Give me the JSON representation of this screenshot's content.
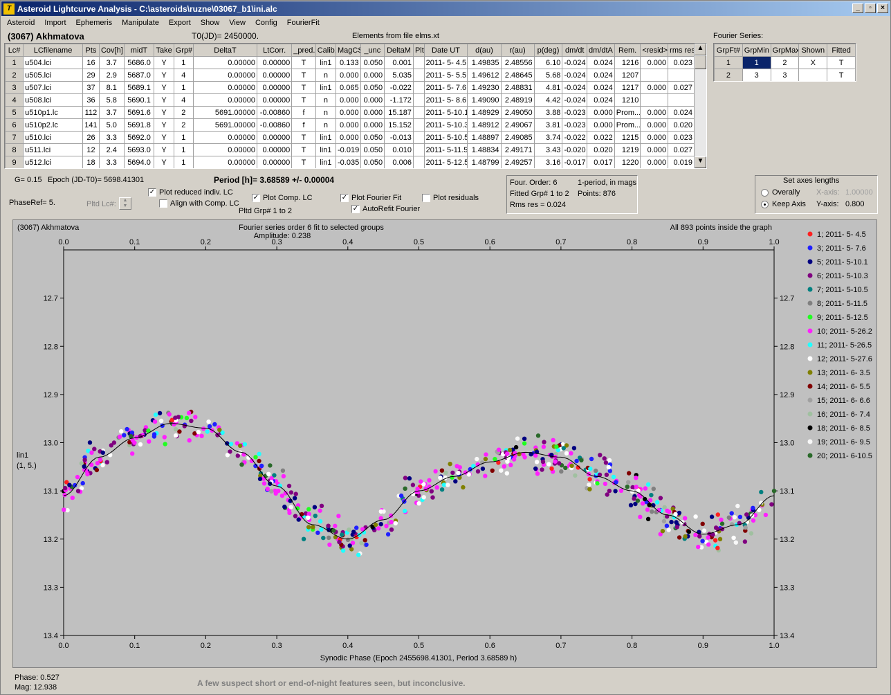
{
  "title": "Asteroid Lightcurve Analysis - C:\\asteroids\\ruzne\\03067_b1\\ini.alc",
  "menu": [
    "Asteroid",
    "Import",
    "Ephemeris",
    "Manipulate",
    "Export",
    "Show",
    "View",
    "Config",
    "FourierFit"
  ],
  "asteroid_name": "(3067) Akhmatova",
  "t0": "T0(JD)= 2450000.",
  "elements": "Elements from file elms.xt",
  "fourier_series_label": "Fourier Series:",
  "lc_table": {
    "columns": [
      "Lc#",
      "LCfilename",
      "Pts",
      "Cov[h]",
      "midT",
      "Take",
      "Grp#",
      "DeltaT",
      "LtCorr.",
      "_pred.",
      "Calib.",
      "MagCS",
      "_unc",
      "DeltaM",
      "Plt",
      "Date UT",
      "d(au)",
      "r(au)",
      "p(deg)",
      "dm/dt",
      "dm/dtA",
      "Rem.",
      "<resid>",
      "rms res"
    ],
    "rows": [
      [
        "1",
        "u504.lci",
        "16",
        "3.7",
        "5686.0",
        "Y",
        "1",
        "0.00000",
        "0.00000",
        "T",
        "lin1",
        "0.133",
        "0.050",
        "0.001",
        "",
        "2011- 5- 4.5",
        "1.49835",
        "2.48556",
        "6.10",
        "-0.024",
        "0.024",
        "1216",
        "0.000",
        "0.023"
      ],
      [
        "2",
        "u505.lci",
        "29",
        "2.9",
        "5687.0",
        "Y",
        "4",
        "0.00000",
        "0.00000",
        "T",
        "n",
        "0.000",
        "0.000",
        "5.035",
        "",
        "2011- 5- 5.5",
        "1.49612",
        "2.48645",
        "5.68",
        "-0.024",
        "0.024",
        "1207",
        "",
        ""
      ],
      [
        "3",
        "u507.lci",
        "37",
        "8.1",
        "5689.1",
        "Y",
        "1",
        "0.00000",
        "0.00000",
        "T",
        "lin1",
        "0.065",
        "0.050",
        "-0.022",
        "",
        "2011- 5- 7.6",
        "1.49230",
        "2.48831",
        "4.81",
        "-0.024",
        "0.024",
        "1217",
        "0.000",
        "0.027"
      ],
      [
        "4",
        "u508.lci",
        "36",
        "5.8",
        "5690.1",
        "Y",
        "4",
        "0.00000",
        "0.00000",
        "T",
        "n",
        "0.000",
        "0.000",
        "-1.172",
        "",
        "2011- 5- 8.6",
        "1.49090",
        "2.48919",
        "4.42",
        "-0.024",
        "0.024",
        "1210",
        "",
        ""
      ],
      [
        "5",
        "u510p1.lc",
        "112",
        "3.7",
        "5691.6",
        "Y",
        "2",
        "5691.00000",
        "-0.00860",
        "f",
        "n",
        "0.000",
        "0.000",
        "15.187",
        "",
        "2011- 5-10.1",
        "1.48929",
        "2.49050",
        "3.88",
        "-0.023",
        "0.000",
        "Prom...",
        "0.000",
        "0.024"
      ],
      [
        "6",
        "u510p2.lc",
        "141",
        "5.0",
        "5691.8",
        "Y",
        "2",
        "5691.00000",
        "-0.00860",
        "f",
        "n",
        "0.000",
        "0.000",
        "15.152",
        "",
        "2011- 5-10.3",
        "1.48912",
        "2.49067",
        "3.81",
        "-0.023",
        "0.000",
        "Prom...",
        "0.000",
        "0.020"
      ],
      [
        "7",
        "u510.lci",
        "26",
        "3.3",
        "5692.0",
        "Y",
        "1",
        "0.00000",
        "0.00000",
        "T",
        "lin1",
        "0.000",
        "0.050",
        "-0.013",
        "",
        "2011- 5-10.5",
        "1.48897",
        "2.49085",
        "3.74",
        "-0.022",
        "0.022",
        "1215",
        "0.000",
        "0.023"
      ],
      [
        "8",
        "u511.lci",
        "12",
        "2.4",
        "5693.0",
        "Y",
        "1",
        "0.00000",
        "0.00000",
        "T",
        "lin1",
        "-0.019",
        "0.050",
        "0.010",
        "",
        "2011- 5-11.5",
        "1.48834",
        "2.49171",
        "3.43",
        "-0.020",
        "0.020",
        "1219",
        "0.000",
        "0.027"
      ],
      [
        "9",
        "u512.lci",
        "18",
        "3.3",
        "5694.0",
        "Y",
        "1",
        "0.00000",
        "0.00000",
        "T",
        "lin1",
        "-0.035",
        "0.050",
        "0.006",
        "",
        "2011- 5-12.5",
        "1.48799",
        "2.49257",
        "3.16",
        "-0.017",
        "0.017",
        "1220",
        "0.000",
        "0.019"
      ]
    ]
  },
  "fourier_table": {
    "columns": [
      "GrpFt#",
      "GrpMin",
      "GrpMax",
      "Shown",
      "Fitted"
    ],
    "rows": [
      [
        "1",
        "1",
        "2",
        "X",
        "T"
      ],
      [
        "2",
        "3",
        "3",
        "",
        "T"
      ]
    ]
  },
  "params": {
    "g": "G= 0.15",
    "epoch": "Epoch (JD-T0)= 5698.41301",
    "period": "Period [h]= 3.68589 +/- 0.00004",
    "phaseref": "PhaseRef= 5.",
    "pltd_lc": "Pltd Lc#:",
    "pltd_grp": "Pltd Grp#  1   to   2"
  },
  "checks": {
    "plot_reduced": "Plot reduced indiv. LC",
    "align": "Align with Comp. LC",
    "plot_comp": "Plot Comp. LC",
    "plot_fourier": "Plot Fourier Fit",
    "autorefit": "AutoRefit Fourier",
    "plot_residuals": "Plot residuals"
  },
  "info": {
    "l1": "Four. Order:  6",
    "l1b": "1-period, in mags",
    "l2": "Fitted Grp# 1 to 2",
    "l2b": "Points: 876",
    "l3": "Rms res      = 0.024"
  },
  "axes_box": {
    "title": "Set axes lengths",
    "overally": "Overally",
    "keep": "Keep Axis",
    "xaxis": "X-axis:",
    "xval": "1.00000",
    "yaxis": "Y-axis:",
    "yval": "0.800"
  },
  "plot": {
    "name": "(3067) Akhmatova",
    "title1": "Fourier series order 6 fit to selected groups",
    "title2": "Amplitude: 0.238",
    "inside": "All 893 points inside the graph",
    "ylabel1": "lin1",
    "ylabel2": "(1, 5.)",
    "xlabel": "Synodic Phase (Epoch 2455698.41301, Period 3.68589 h)"
  },
  "status": {
    "phase": "Phase:  0.527",
    "mag": "Mag:   12.938",
    "note": "A few suspect short or end-of-night features seen, but inconclusive."
  },
  "chart_data": {
    "type": "scatter",
    "xlabel": "Synodic Phase (Epoch 2455698.41301, Period 3.68589 h)",
    "ylabel": "lin1 (1, 5.)",
    "xlim": [
      0,
      1
    ],
    "ylim": [
      12.6,
      13.4
    ],
    "y_inverted": true,
    "xticks": [
      "0.0",
      "0.1",
      "0.2",
      "0.3",
      "0.4",
      "0.5",
      "0.6",
      "0.7",
      "0.8",
      "0.9",
      "1.0"
    ],
    "yticks": [
      "12.7",
      "12.8",
      "12.9",
      "13.0",
      "13.1",
      "13.2",
      "13.3",
      "13.4"
    ],
    "fourier_amplitude": 0.238,
    "fit_curve": {
      "phase": [
        0,
        0.05,
        0.1,
        0.15,
        0.2,
        0.25,
        0.3,
        0.35,
        0.4,
        0.45,
        0.5,
        0.55,
        0.6,
        0.65,
        0.7,
        0.75,
        0.8,
        0.85,
        0.9,
        0.95,
        1.0
      ],
      "mag": [
        13.11,
        13.03,
        12.99,
        12.96,
        12.97,
        13.02,
        13.09,
        13.17,
        13.2,
        13.16,
        13.1,
        13.07,
        13.04,
        13.02,
        13.03,
        13.07,
        13.1,
        13.15,
        13.19,
        13.17,
        13.11
      ]
    },
    "series": [
      {
        "name": "1; 2011- 5- 4.5",
        "color": "#ff2020"
      },
      {
        "name": "3; 2011- 5- 7.6",
        "color": "#2020ff"
      },
      {
        "name": "5; 2011- 5-10.1",
        "color": "#000080"
      },
      {
        "name": "6; 2011- 5-10.3",
        "color": "#800080"
      },
      {
        "name": "7; 2011- 5-10.5",
        "color": "#008080"
      },
      {
        "name": "8; 2011- 5-11.5",
        "color": "#808080"
      },
      {
        "name": "9; 2011- 5-12.5",
        "color": "#20ff20"
      },
      {
        "name": "10; 2011- 5-26.2",
        "color": "#ff20ff"
      },
      {
        "name": "11; 2011- 5-26.5",
        "color": "#20ffff"
      },
      {
        "name": "12; 2011- 5-27.6",
        "color": "#ffffff"
      },
      {
        "name": "13; 2011- 6- 3.5",
        "color": "#808000"
      },
      {
        "name": "14; 2011- 6- 5.5",
        "color": "#800000"
      },
      {
        "name": "15; 2011- 6- 6.6",
        "color": "#a0a0a0"
      },
      {
        "name": "16; 2011- 6- 7.4",
        "color": "#a0c0a0"
      },
      {
        "name": "18; 2011- 6- 8.5",
        "color": "#000000"
      },
      {
        "name": "19; 2011- 6- 9.5",
        "color": "#f8f8f8"
      },
      {
        "name": "20; 2011- 6-10.5",
        "color": "#2a6a2a"
      }
    ]
  }
}
